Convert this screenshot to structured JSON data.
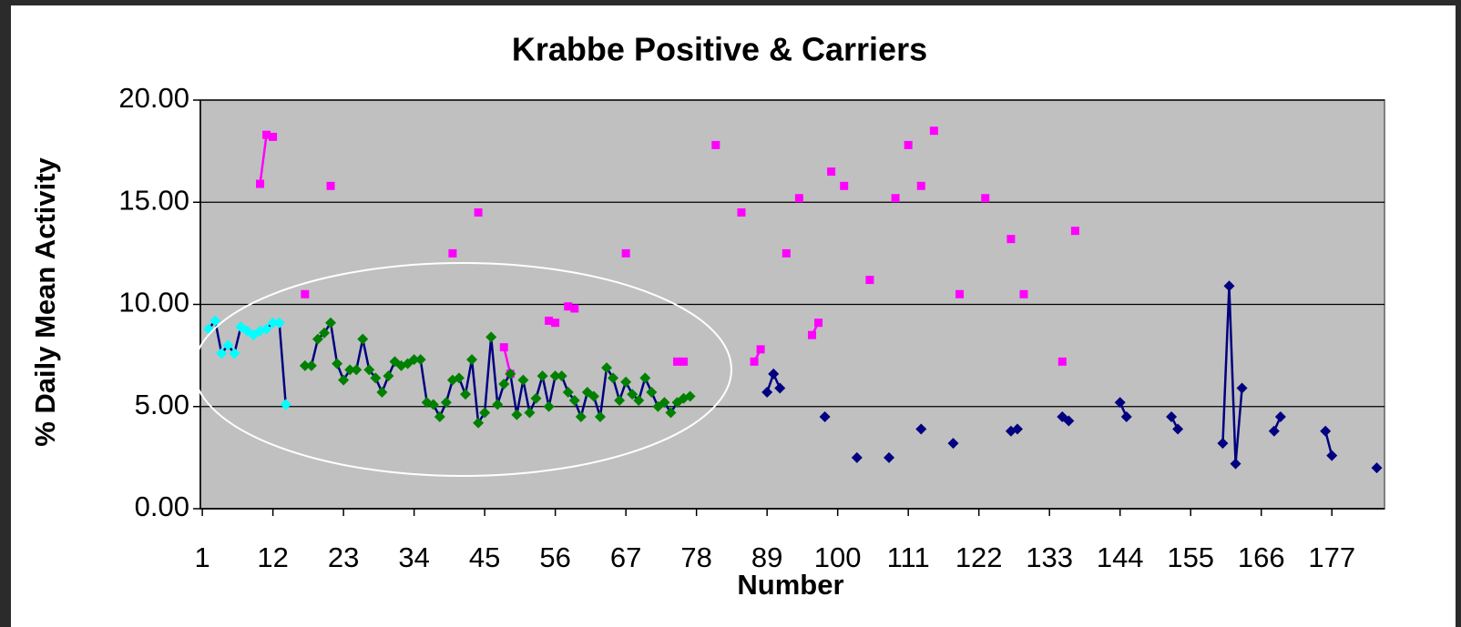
{
  "chart_data": {
    "type": "line",
    "title": "Krabbe Positive & Carriers",
    "x_label": "Number",
    "y_label": "% Daily Mean Activity",
    "xlim": [
      0.7,
      185.2
    ],
    "xticks": [
      1,
      12,
      23,
      34,
      45,
      56,
      67,
      78,
      89,
      100,
      111,
      122,
      133,
      144,
      155,
      166,
      177
    ],
    "ylim": [
      0,
      20
    ],
    "yticks": [
      {
        "value": 0,
        "label": "0.00"
      },
      {
        "value": 5,
        "label": "5.00"
      },
      {
        "value": 10,
        "label": "10.00"
      },
      {
        "value": 15,
        "label": "15.00"
      },
      {
        "value": 20,
        "label": "20.00"
      }
    ],
    "grid": true,
    "plot_color": "#c0c0c0",
    "series": [
      {
        "color": "#ff00ff",
        "line_color": "#ff00ff",
        "marker": "square",
        "x": [
          10,
          11,
          12,
          17,
          21,
          40,
          44,
          48,
          49,
          55,
          56,
          58,
          59,
          67,
          75,
          76,
          81,
          85,
          87,
          88,
          92,
          94,
          96,
          97,
          99,
          101,
          105,
          109,
          111,
          113,
          115,
          119,
          123,
          127,
          129,
          135,
          137
        ],
        "values": [
          15.9,
          18.3,
          18.2,
          10.5,
          15.8,
          12.5,
          14.5,
          7.9,
          6.6,
          9.2,
          9.1,
          9.9,
          9.8,
          12.5,
          7.2,
          7.2,
          17.8,
          14.5,
          7.2,
          7.8,
          12.5,
          15.2,
          8.5,
          9.1,
          16.5,
          15.8,
          11.2,
          15.2,
          17.8,
          15.8,
          18.5,
          10.5,
          15.2,
          13.2,
          10.5,
          7.2,
          13.6
        ]
      },
      {
        "color": "#00ffff",
        "line_color": "#000080",
        "marker": "diamond",
        "x": [
          2,
          3,
          4,
          5,
          6,
          7,
          8,
          9,
          10,
          11,
          12,
          13,
          14
        ],
        "values": [
          8.8,
          9.2,
          7.6,
          8.0,
          7.6,
          8.9,
          8.7,
          8.5,
          8.7,
          8.8,
          9.1,
          9.1,
          5.1
        ]
      },
      {
        "color": "#008000",
        "line_color": "#000080",
        "marker": "diamond",
        "x": [
          17,
          18,
          19,
          20,
          21,
          22,
          23,
          24,
          25,
          26,
          27,
          28,
          29,
          30,
          31,
          32,
          33,
          34,
          35,
          36,
          37,
          38,
          39,
          40,
          41,
          42,
          43,
          44,
          45,
          46,
          47,
          48,
          49,
          50,
          51,
          52,
          53,
          54,
          55,
          56,
          57,
          58,
          59,
          60,
          61,
          62,
          63,
          64,
          65,
          66,
          67,
          68,
          69,
          70,
          71,
          72,
          73,
          74,
          75,
          76,
          77
        ],
        "values": [
          7.0,
          7.0,
          8.3,
          8.6,
          9.1,
          7.1,
          6.3,
          6.8,
          6.8,
          8.3,
          6.8,
          6.4,
          5.7,
          6.5,
          7.2,
          7.0,
          7.1,
          7.3,
          7.3,
          5.2,
          5.1,
          4.5,
          5.2,
          6.3,
          6.4,
          5.6,
          7.3,
          4.2,
          4.7,
          8.4,
          5.1,
          6.1,
          6.6,
          4.6,
          6.3,
          4.7,
          5.4,
          6.5,
          5.0,
          6.5,
          6.5,
          5.7,
          5.3,
          4.5,
          5.7,
          5.5,
          4.5,
          6.9,
          6.4,
          5.3,
          6.2,
          5.6,
          5.3,
          6.4,
          5.7,
          5.0,
          5.2,
          4.7,
          5.2,
          5.4,
          5.5
        ]
      },
      {
        "color": "#000080",
        "line_color": "#000080",
        "marker": "diamond",
        "x": [
          89,
          90,
          91,
          98,
          103,
          108,
          113,
          118,
          127,
          128,
          135,
          136,
          144,
          145,
          152,
          153,
          160,
          161,
          162,
          163,
          168,
          169,
          176,
          177,
          184
        ],
        "values": [
          5.7,
          6.6,
          5.9,
          4.5,
          2.5,
          2.5,
          3.9,
          3.2,
          3.8,
          3.9,
          4.5,
          4.3,
          5.2,
          4.5,
          4.5,
          3.9,
          3.2,
          10.9,
          2.2,
          5.9,
          3.8,
          4.5,
          3.8,
          2.6,
          2.0
        ]
      }
    ]
  }
}
